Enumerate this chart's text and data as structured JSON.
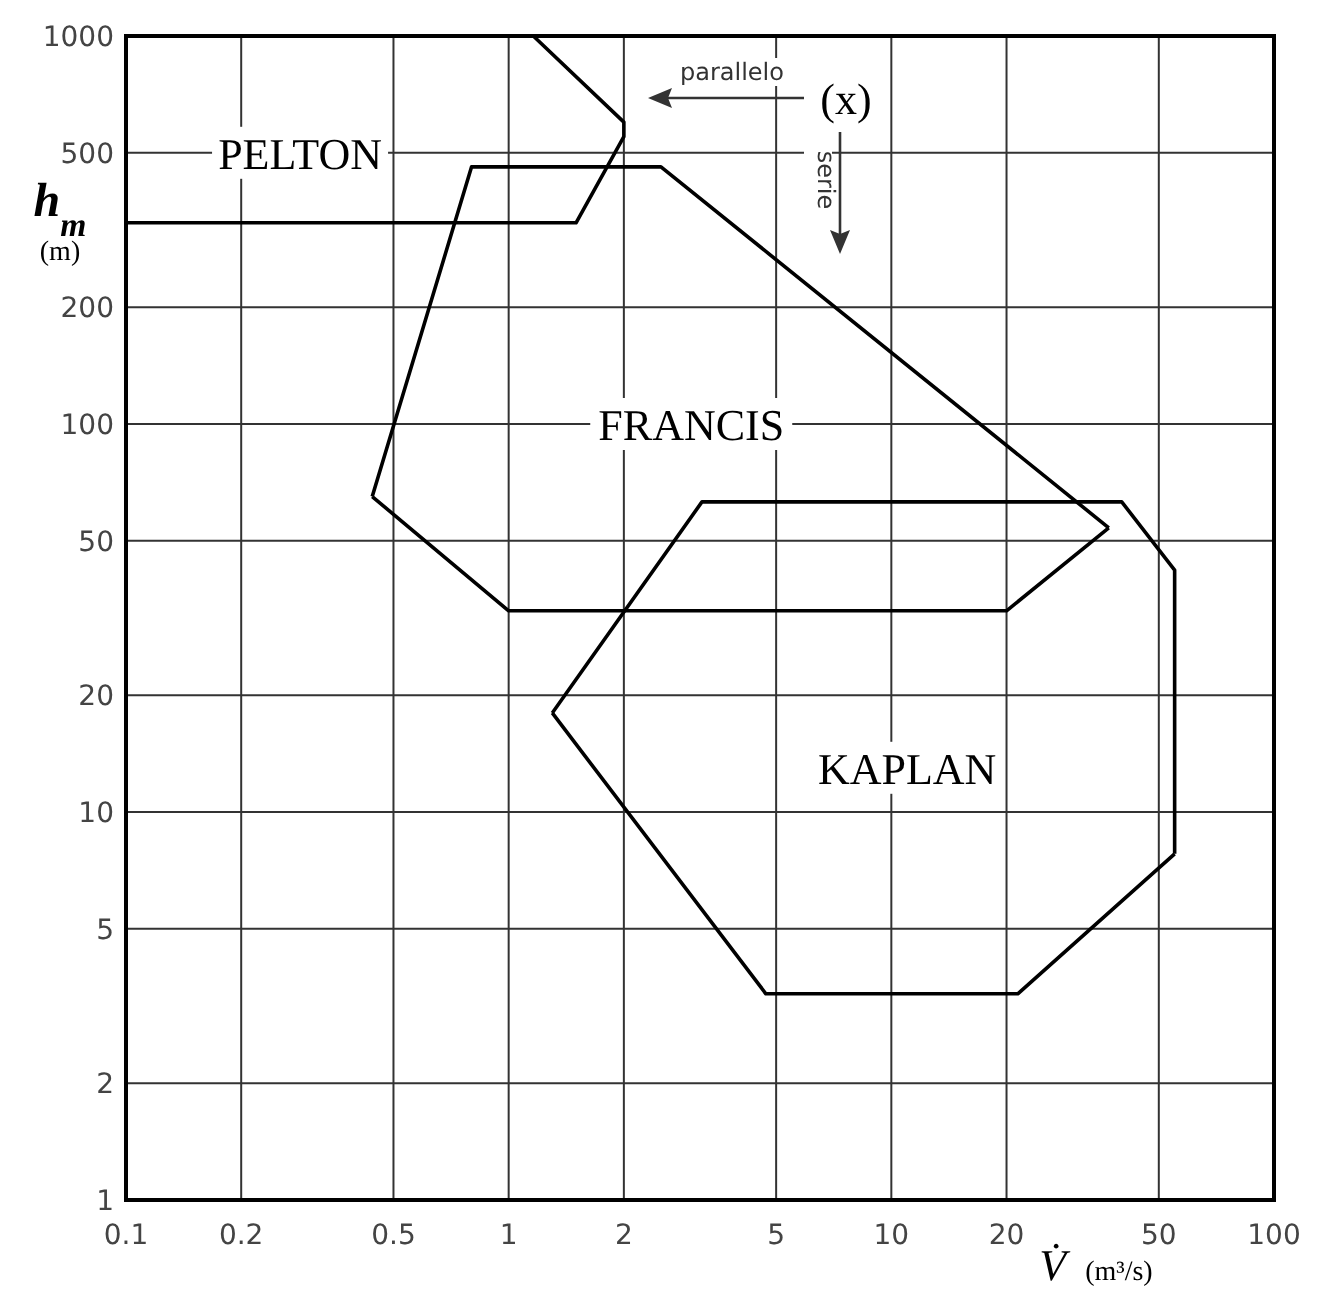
{
  "chart_data": {
    "type": "line",
    "xlabel": "V̇ (m³/s)",
    "ylabel": "h$_{m}$ (m)",
    "log": "xy",
    "grid": true,
    "xlim": [
      0.1,
      100
    ],
    "xticks": [
      0.1,
      0.2,
      0.5,
      1,
      2,
      5,
      10,
      20,
      50,
      100
    ],
    "ylim": [
      1,
      1000
    ],
    "yticks": [
      1,
      2,
      5,
      10,
      20,
      50,
      100,
      200,
      500,
      1000
    ],
    "series": [
      {
        "color": "#000000",
        "x": [
          0.1,
          1.5,
          2,
          2,
          1.16
        ],
        "values": [
          330,
          330,
          550,
          600,
          1000
        ]
      },
      {
        "color": "#000000",
        "x": [
          0.44,
          0.8,
          2.5,
          37
        ],
        "values": [
          65,
          460,
          460,
          54
        ]
      },
      {
        "color": "#000000",
        "x": [
          0.44,
          1.0,
          20,
          37
        ],
        "values": [
          65,
          33,
          33,
          54
        ]
      },
      {
        "color": "#000000",
        "x": [
          1.3,
          3.2,
          40,
          55,
          55
        ],
        "values": [
          18,
          63,
          63,
          42,
          7.8
        ]
      },
      {
        "color": "#000000",
        "x": [
          1.3,
          4.7,
          21.4,
          55
        ],
        "values": [
          18,
          3.4,
          3.4,
          7.8
        ]
      }
    ],
    "annotations": [
      "PELTON",
      "FRANCIS",
      "KAPLAN",
      "(x)",
      "parallelo",
      "serie"
    ]
  }
}
